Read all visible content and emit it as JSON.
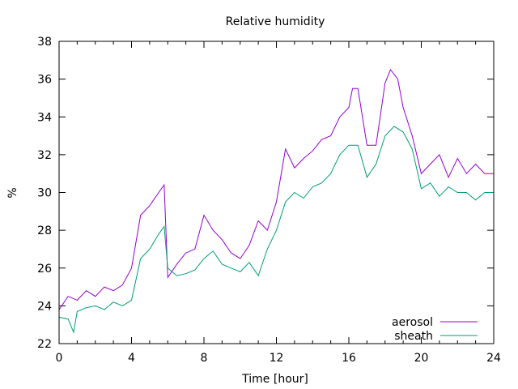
{
  "chart_data": {
    "type": "line",
    "title": "Relative humidity",
    "xlabel": "Time [hour]",
    "ylabel": "%",
    "xlim": [
      0,
      24
    ],
    "ylim": [
      22,
      38
    ],
    "xticks": [
      0,
      4,
      8,
      12,
      16,
      20,
      24
    ],
    "xminor_step": 1,
    "yticks": [
      22,
      24,
      26,
      28,
      30,
      32,
      34,
      36,
      38
    ],
    "grid": false,
    "legend_position": "bottom-right",
    "series": [
      {
        "name": "aerosol",
        "color": "#9400d3",
        "x": [
          0,
          0.5,
          1,
          1.5,
          2,
          2.5,
          3,
          3.5,
          4,
          4.5,
          5,
          5.5,
          5.8,
          6,
          6.5,
          7,
          7.5,
          8,
          8.5,
          9,
          9.5,
          10,
          10.5,
          11,
          11.5,
          12,
          12.5,
          13,
          13.5,
          14,
          14.5,
          15,
          15.5,
          16,
          16.2,
          16.5,
          17,
          17.5,
          18,
          18.3,
          18.7,
          19,
          19.5,
          20,
          20.5,
          21,
          21.5,
          22,
          22.5,
          23,
          23.5,
          24
        ],
        "y": [
          23.8,
          24.5,
          24.3,
          24.8,
          24.5,
          25.0,
          24.8,
          25.1,
          26.0,
          28.8,
          29.3,
          30.0,
          30.4,
          25.5,
          26.2,
          26.8,
          27.0,
          28.8,
          28.0,
          27.5,
          26.8,
          26.5,
          27.2,
          28.5,
          28.0,
          29.5,
          32.3,
          31.3,
          31.8,
          32.2,
          32.8,
          33.0,
          34.0,
          34.5,
          35.5,
          35.5,
          32.5,
          32.5,
          35.8,
          36.5,
          36.0,
          34.5,
          33.0,
          31.0,
          31.5,
          32.0,
          30.8,
          31.8,
          31.0,
          31.5,
          31.0,
          31.0
        ]
      },
      {
        "name": "sheath",
        "color": "#009e73",
        "x": [
          0,
          0.5,
          0.8,
          1,
          1.5,
          2,
          2.5,
          3,
          3.5,
          4,
          4.5,
          5,
          5.5,
          5.8,
          6,
          6.5,
          7,
          7.5,
          8,
          8.5,
          9,
          9.5,
          10,
          10.5,
          11,
          11.5,
          12,
          12.5,
          13,
          13.5,
          14,
          14.5,
          15,
          15.5,
          16,
          16.5,
          17,
          17.5,
          18,
          18.5,
          19,
          19.5,
          20,
          20.5,
          21,
          21.5,
          22,
          22.5,
          23,
          23.5,
          24
        ],
        "y": [
          23.4,
          23.3,
          22.6,
          23.7,
          23.9,
          24.0,
          23.8,
          24.2,
          24.0,
          24.3,
          26.5,
          27.0,
          27.8,
          28.2,
          26.0,
          25.6,
          25.7,
          25.9,
          26.5,
          26.9,
          26.2,
          26.0,
          25.8,
          26.3,
          25.6,
          27.0,
          28.0,
          29.5,
          30.0,
          29.7,
          30.3,
          30.5,
          31.0,
          32.0,
          32.5,
          32.5,
          30.8,
          31.5,
          33.0,
          33.5,
          33.2,
          32.3,
          30.2,
          30.5,
          29.8,
          30.3,
          30.0,
          30.0,
          29.6,
          30.0,
          30.0
        ]
      }
    ]
  }
}
